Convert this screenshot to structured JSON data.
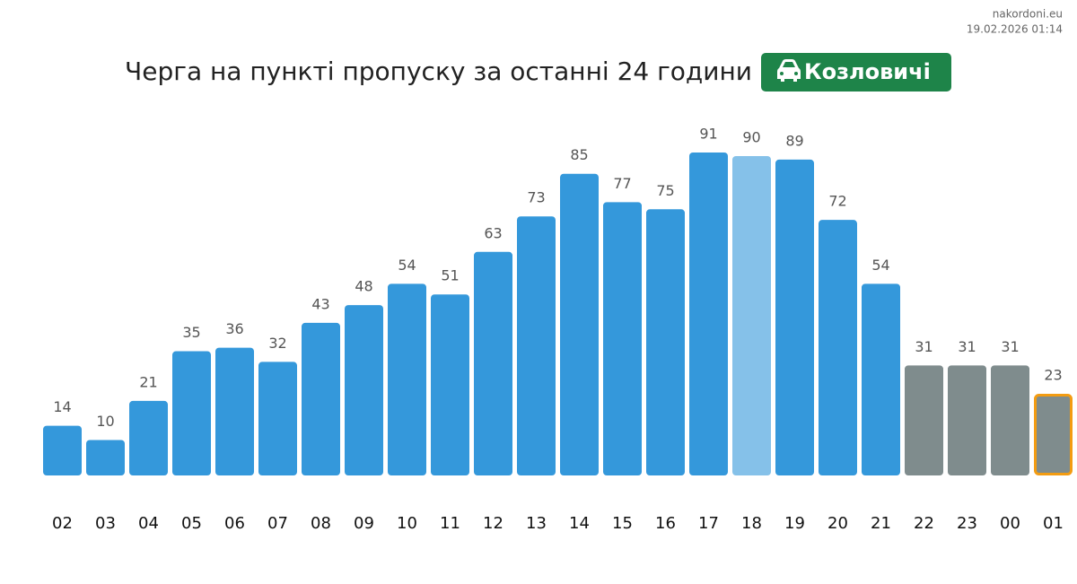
{
  "source": "nakordoni.eu",
  "timestamp": "19.02.2026 01:14",
  "chart_data": {
    "type": "bar",
    "title": "Черга на пункті пропуску за останні 24 години",
    "badge": "Козловичі",
    "badge_color": "#1e8449",
    "categories": [
      "02",
      "03",
      "04",
      "05",
      "06",
      "07",
      "08",
      "09",
      "10",
      "11",
      "12",
      "13",
      "14",
      "15",
      "16",
      "17",
      "18",
      "19",
      "20",
      "21",
      "22",
      "23",
      "00",
      "01"
    ],
    "values": [
      14,
      10,
      21,
      35,
      36,
      32,
      43,
      48,
      54,
      51,
      63,
      73,
      85,
      77,
      75,
      91,
      90,
      89,
      72,
      54,
      31,
      31,
      31,
      23
    ],
    "colors": [
      "#3498db",
      "#3498db",
      "#3498db",
      "#3498db",
      "#3498db",
      "#3498db",
      "#3498db",
      "#3498db",
      "#3498db",
      "#3498db",
      "#3498db",
      "#3498db",
      "#3498db",
      "#3498db",
      "#3498db",
      "#3498db",
      "#85c1e9",
      "#3498db",
      "#3498db",
      "#3498db",
      "#7f8c8d",
      "#7f8c8d",
      "#7f8c8d",
      "#7f8c8d"
    ],
    "highlight_category": "01",
    "highlight_border_color": "#f39c12"
  }
}
